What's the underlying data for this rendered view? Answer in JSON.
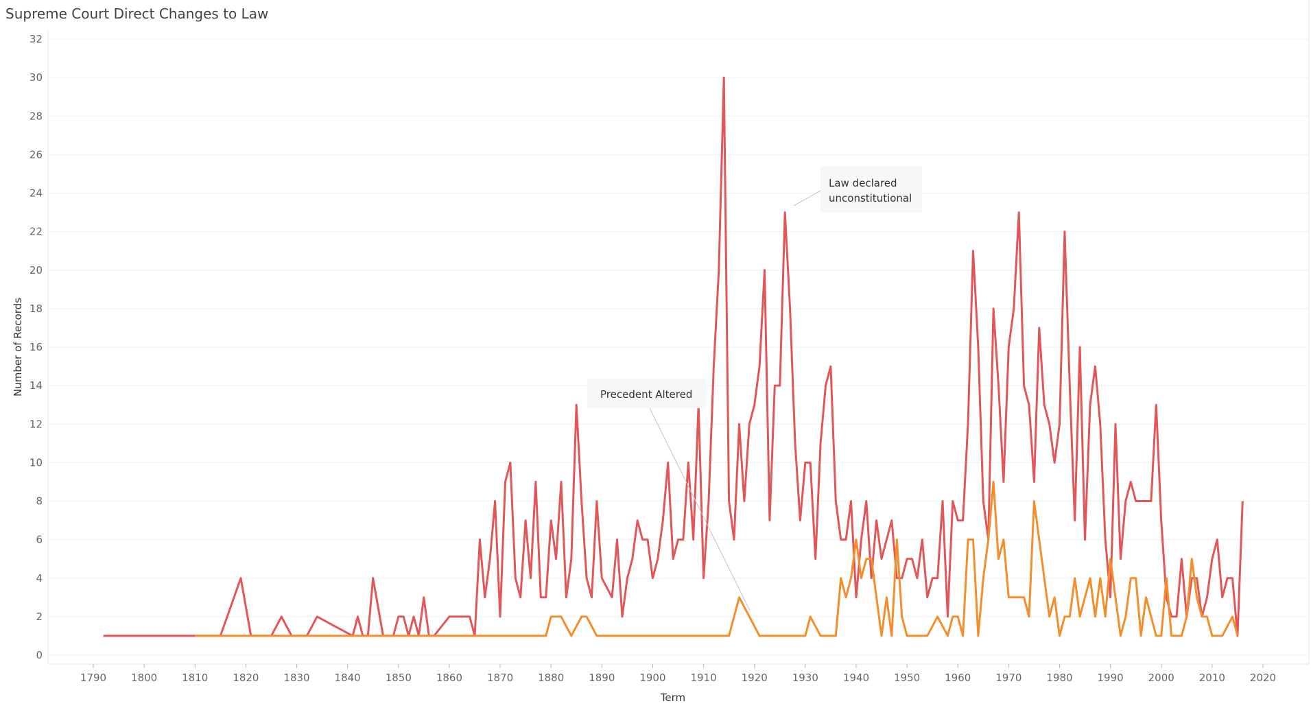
{
  "chart_data": {
    "type": "line",
    "title": "Supreme Court Direct Changes to Law",
    "xlabel": "Term",
    "ylabel": "Number of Records",
    "xlim": [
      1784,
      2023
    ],
    "ylim": [
      0,
      32
    ],
    "x_ticks": [
      1790,
      1800,
      1810,
      1820,
      1830,
      1840,
      1850,
      1860,
      1870,
      1880,
      1890,
      1900,
      1910,
      1920,
      1930,
      1940,
      1950,
      1960,
      1970,
      1980,
      1990,
      2000,
      2010,
      2020
    ],
    "y_ticks": [
      0,
      2,
      4,
      6,
      8,
      10,
      12,
      14,
      16,
      18,
      20,
      22,
      24,
      26,
      28,
      30,
      32
    ],
    "grid": true,
    "colors": {
      "law_declared_unconstitutional": "#e15759",
      "precedent_altered": "#f28e2b"
    },
    "series": [
      {
        "name": "Law declared unconstitutional",
        "color": "#e15759",
        "points": [
          [
            1792,
            1
          ],
          [
            1796,
            1
          ],
          [
            1800,
            1
          ],
          [
            1803,
            1
          ],
          [
            1806,
            1
          ],
          [
            1810,
            1
          ],
          [
            1812,
            1
          ],
          [
            1815,
            1
          ],
          [
            1819,
            4
          ],
          [
            1821,
            1
          ],
          [
            1823,
            1
          ],
          [
            1825,
            1
          ],
          [
            1827,
            2
          ],
          [
            1829,
            1
          ],
          [
            1832,
            1
          ],
          [
            1834,
            2
          ],
          [
            1841,
            1
          ],
          [
            1842,
            2
          ],
          [
            1843,
            1
          ],
          [
            1844,
            1
          ],
          [
            1845,
            4
          ],
          [
            1847,
            1
          ],
          [
            1849,
            1
          ],
          [
            1850,
            2
          ],
          [
            1851,
            2
          ],
          [
            1852,
            1
          ],
          [
            1853,
            2
          ],
          [
            1854,
            1
          ],
          [
            1855,
            3
          ],
          [
            1856,
            1
          ],
          [
            1857,
            1
          ],
          [
            1860,
            2
          ],
          [
            1864,
            2
          ],
          [
            1865,
            1
          ],
          [
            1866,
            6
          ],
          [
            1867,
            3
          ],
          [
            1868,
            5
          ],
          [
            1869,
            8
          ],
          [
            1870,
            2
          ],
          [
            1871,
            9
          ],
          [
            1872,
            10
          ],
          [
            1873,
            4
          ],
          [
            1874,
            3
          ],
          [
            1875,
            7
          ],
          [
            1876,
            4
          ],
          [
            1877,
            9
          ],
          [
            1878,
            3
          ],
          [
            1879,
            3
          ],
          [
            1880,
            7
          ],
          [
            1881,
            5
          ],
          [
            1882,
            9
          ],
          [
            1883,
            3
          ],
          [
            1884,
            5
          ],
          [
            1885,
            13
          ],
          [
            1886,
            8
          ],
          [
            1887,
            4
          ],
          [
            1888,
            3
          ],
          [
            1889,
            8
          ],
          [
            1890,
            4
          ],
          [
            1892,
            3
          ],
          [
            1893,
            6
          ],
          [
            1894,
            2
          ],
          [
            1895,
            4
          ],
          [
            1896,
            5
          ],
          [
            1897,
            7
          ],
          [
            1898,
            6
          ],
          [
            1899,
            6
          ],
          [
            1900,
            4
          ],
          [
            1901,
            5
          ],
          [
            1902,
            7
          ],
          [
            1903,
            10
          ],
          [
            1904,
            5
          ],
          [
            1905,
            6
          ],
          [
            1906,
            6
          ],
          [
            1907,
            10
          ],
          [
            1908,
            6
          ],
          [
            1909,
            13
          ],
          [
            1910,
            4
          ],
          [
            1911,
            8
          ],
          [
            1912,
            15
          ],
          [
            1913,
            20
          ],
          [
            1914,
            30
          ],
          [
            1915,
            8
          ],
          [
            1916,
            6
          ],
          [
            1917,
            12
          ],
          [
            1918,
            8
          ],
          [
            1919,
            12
          ],
          [
            1920,
            13
          ],
          [
            1921,
            15
          ],
          [
            1922,
            20
          ],
          [
            1923,
            7
          ],
          [
            1924,
            14
          ],
          [
            1925,
            14
          ],
          [
            1926,
            23
          ],
          [
            1927,
            18
          ],
          [
            1928,
            11
          ],
          [
            1929,
            7
          ],
          [
            1930,
            10
          ],
          [
            1931,
            10
          ],
          [
            1932,
            5
          ],
          [
            1933,
            11
          ],
          [
            1934,
            14
          ],
          [
            1935,
            15
          ],
          [
            1936,
            8
          ],
          [
            1937,
            6
          ],
          [
            1938,
            6
          ],
          [
            1939,
            8
          ],
          [
            1940,
            3
          ],
          [
            1941,
            6
          ],
          [
            1942,
            8
          ],
          [
            1943,
            4
          ],
          [
            1944,
            7
          ],
          [
            1945,
            5
          ],
          [
            1946,
            6
          ],
          [
            1947,
            7
          ],
          [
            1948,
            4
          ],
          [
            1949,
            4
          ],
          [
            1950,
            5
          ],
          [
            1951,
            5
          ],
          [
            1952,
            4
          ],
          [
            1953,
            6
          ],
          [
            1954,
            3
          ],
          [
            1955,
            4
          ],
          [
            1956,
            4
          ],
          [
            1957,
            8
          ],
          [
            1958,
            2
          ],
          [
            1959,
            8
          ],
          [
            1960,
            7
          ],
          [
            1961,
            7
          ],
          [
            1962,
            12
          ],
          [
            1963,
            21
          ],
          [
            1964,
            16
          ],
          [
            1965,
            8
          ],
          [
            1966,
            6
          ],
          [
            1967,
            18
          ],
          [
            1968,
            14
          ],
          [
            1969,
            9
          ],
          [
            1970,
            16
          ],
          [
            1971,
            18
          ],
          [
            1972,
            23
          ],
          [
            1973,
            14
          ],
          [
            1974,
            13
          ],
          [
            1975,
            9
          ],
          [
            1976,
            17
          ],
          [
            1977,
            13
          ],
          [
            1978,
            12
          ],
          [
            1979,
            10
          ],
          [
            1980,
            12
          ],
          [
            1981,
            22
          ],
          [
            1982,
            14
          ],
          [
            1983,
            7
          ],
          [
            1984,
            16
          ],
          [
            1985,
            6
          ],
          [
            1986,
            13
          ],
          [
            1987,
            15
          ],
          [
            1988,
            12
          ],
          [
            1989,
            6
          ],
          [
            1990,
            3
          ],
          [
            1991,
            12
          ],
          [
            1992,
            5
          ],
          [
            1993,
            8
          ],
          [
            1994,
            9
          ],
          [
            1995,
            8
          ],
          [
            1996,
            8
          ],
          [
            1998,
            8
          ],
          [
            1999,
            13
          ],
          [
            2000,
            7
          ],
          [
            2001,
            3
          ],
          [
            2002,
            2
          ],
          [
            2003,
            2
          ],
          [
            2004,
            5
          ],
          [
            2005,
            2
          ],
          [
            2006,
            4
          ],
          [
            2007,
            4
          ],
          [
            2008,
            2
          ],
          [
            2009,
            3
          ],
          [
            2010,
            5
          ],
          [
            2011,
            6
          ],
          [
            2012,
            3
          ],
          [
            2013,
            4
          ],
          [
            2014,
            4
          ],
          [
            2015,
            1
          ],
          [
            2016,
            8
          ]
        ]
      },
      {
        "name": "Precedent Altered",
        "color": "#f28e2b",
        "points": [
          [
            1810,
            1
          ],
          [
            1816,
            1
          ],
          [
            1830,
            1
          ],
          [
            1840,
            1
          ],
          [
            1850,
            1
          ],
          [
            1860,
            1
          ],
          [
            1870,
            1
          ],
          [
            1879,
            1
          ],
          [
            1880,
            2
          ],
          [
            1882,
            2
          ],
          [
            1884,
            1
          ],
          [
            1886,
            2
          ],
          [
            1887,
            2
          ],
          [
            1889,
            1
          ],
          [
            1900,
            1
          ],
          [
            1910,
            1
          ],
          [
            1915,
            1
          ],
          [
            1917,
            3
          ],
          [
            1921,
            1
          ],
          [
            1930,
            1
          ],
          [
            1931,
            2
          ],
          [
            1933,
            1
          ],
          [
            1936,
            1
          ],
          [
            1937,
            4
          ],
          [
            1938,
            3
          ],
          [
            1939,
            4
          ],
          [
            1940,
            6
          ],
          [
            1941,
            4
          ],
          [
            1942,
            5
          ],
          [
            1943,
            5
          ],
          [
            1944,
            3
          ],
          [
            1945,
            1
          ],
          [
            1946,
            3
          ],
          [
            1947,
            1
          ],
          [
            1948,
            6
          ],
          [
            1949,
            2
          ],
          [
            1950,
            1
          ],
          [
            1953,
            1
          ],
          [
            1954,
            1
          ],
          [
            1956,
            2
          ],
          [
            1958,
            1
          ],
          [
            1959,
            2
          ],
          [
            1960,
            2
          ],
          [
            1961,
            1
          ],
          [
            1962,
            6
          ],
          [
            1963,
            6
          ],
          [
            1964,
            1
          ],
          [
            1965,
            4
          ],
          [
            1966,
            6
          ],
          [
            1967,
            9
          ],
          [
            1968,
            5
          ],
          [
            1969,
            6
          ],
          [
            1970,
            3
          ],
          [
            1973,
            3
          ],
          [
            1974,
            2
          ],
          [
            1975,
            8
          ],
          [
            1976,
            6
          ],
          [
            1977,
            4
          ],
          [
            1978,
            2
          ],
          [
            1979,
            3
          ],
          [
            1980,
            1
          ],
          [
            1981,
            2
          ],
          [
            1982,
            2
          ],
          [
            1983,
            4
          ],
          [
            1984,
            2
          ],
          [
            1985,
            3
          ],
          [
            1986,
            4
          ],
          [
            1987,
            2
          ],
          [
            1988,
            4
          ],
          [
            1989,
            2
          ],
          [
            1990,
            5
          ],
          [
            1991,
            3
          ],
          [
            1992,
            1
          ],
          [
            1993,
            2
          ],
          [
            1994,
            4
          ],
          [
            1995,
            4
          ],
          [
            1996,
            1
          ],
          [
            1997,
            3
          ],
          [
            1998,
            2
          ],
          [
            1999,
            1
          ],
          [
            2000,
            1
          ],
          [
            2001,
            4
          ],
          [
            2002,
            1
          ],
          [
            2003,
            1
          ],
          [
            2004,
            1
          ],
          [
            2005,
            2
          ],
          [
            2006,
            5
          ],
          [
            2007,
            3
          ],
          [
            2008,
            2
          ],
          [
            2009,
            2
          ],
          [
            2010,
            1
          ],
          [
            2011,
            1
          ],
          [
            2012,
            1
          ],
          [
            2014,
            2
          ],
          [
            2015,
            1
          ]
        ]
      }
    ],
    "annotations": [
      {
        "text_lines": [
          "Law declared",
          "unconstitutional"
        ],
        "series": "Law declared unconstitutional",
        "x": 1927,
        "y": 23.5
      },
      {
        "text_lines": [
          "Precedent Altered"
        ],
        "series": "Precedent Altered",
        "x": 1919,
        "y": 1.6
      }
    ]
  }
}
